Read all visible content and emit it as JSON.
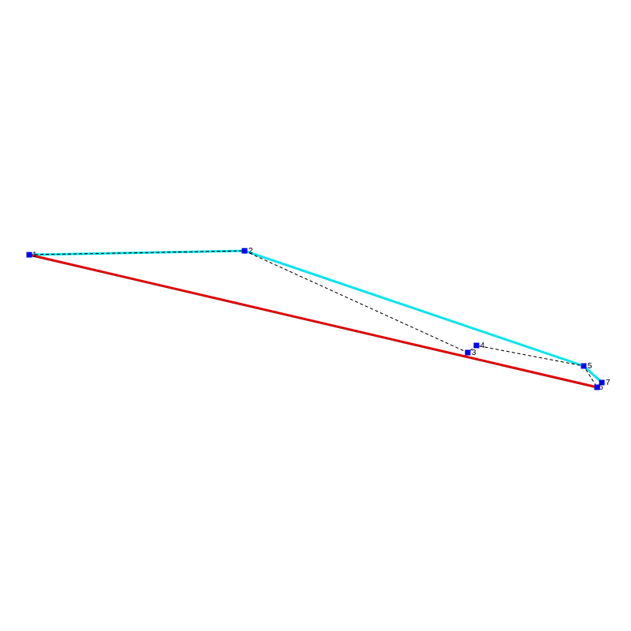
{
  "diagram": {
    "points": [
      {
        "id": "1",
        "label": "1"
      },
      {
        "id": "2",
        "label": "2"
      },
      {
        "id": "3",
        "label": "3"
      },
      {
        "id": "4",
        "label": "4"
      },
      {
        "id": "5",
        "label": "5"
      },
      {
        "id": "6",
        "label": "6"
      },
      {
        "id": "7",
        "label": "7"
      }
    ],
    "paths": [
      {
        "name": "dashed-path",
        "sequence": [
          "1",
          "2",
          "3",
          "4",
          "5",
          "6"
        ],
        "color": "#000000",
        "style": "dashed"
      },
      {
        "name": "cyan-polygon",
        "sequence": [
          "1",
          "2",
          "5",
          "7",
          "6",
          "1"
        ],
        "color": "#00e5ee",
        "style": "solid"
      },
      {
        "name": "red-segment",
        "sequence": [
          "1",
          "6"
        ],
        "color": "#e60000",
        "style": "solid"
      }
    ],
    "colors": {
      "point": "#0000ff",
      "label": "#000000",
      "background": "#ffffff"
    }
  }
}
